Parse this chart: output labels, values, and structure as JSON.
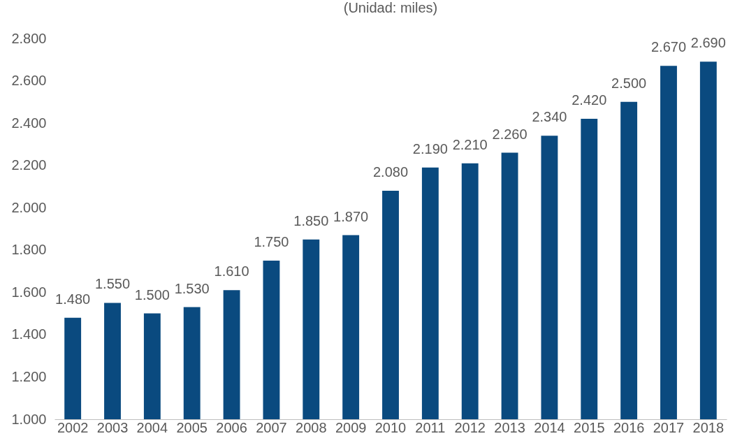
{
  "chart_data": {
    "type": "bar",
    "subtitle": "(Unidad: miles)",
    "categories": [
      "2002",
      "2003",
      "2004",
      "2005",
      "2006",
      "2007",
      "2008",
      "2009",
      "2010",
      "2011",
      "2012",
      "2013",
      "2014",
      "2015",
      "2016",
      "2017",
      "2018"
    ],
    "values": [
      1480,
      1550,
      1500,
      1530,
      1610,
      1750,
      1850,
      1870,
      2080,
      2190,
      2210,
      2260,
      2340,
      2420,
      2500,
      2670,
      2690
    ],
    "value_labels": [
      "1.480",
      "1.550",
      "1.500",
      "1.530",
      "1.610",
      "1.750",
      "1.850",
      "1.870",
      "2.080",
      "2.190",
      "2.210",
      "2.260",
      "2.340",
      "2.420",
      "2.500",
      "2.670",
      "2.690"
    ],
    "color": "#0a4a7f",
    "ylim": [
      1000,
      2800
    ],
    "yticks": [
      {
        "value": 1000,
        "label": "1.000"
      },
      {
        "value": 1200,
        "label": "1.200"
      },
      {
        "value": 1400,
        "label": "1.400"
      },
      {
        "value": 1600,
        "label": "1.600"
      },
      {
        "value": 1800,
        "label": "1.800"
      },
      {
        "value": 2000,
        "label": "2.000"
      },
      {
        "value": 2200,
        "label": "2.200"
      },
      {
        "value": 2400,
        "label": "2.400"
      },
      {
        "value": 2600,
        "label": "2.600"
      },
      {
        "value": 2800,
        "label": "2.800"
      }
    ],
    "grid": false
  }
}
